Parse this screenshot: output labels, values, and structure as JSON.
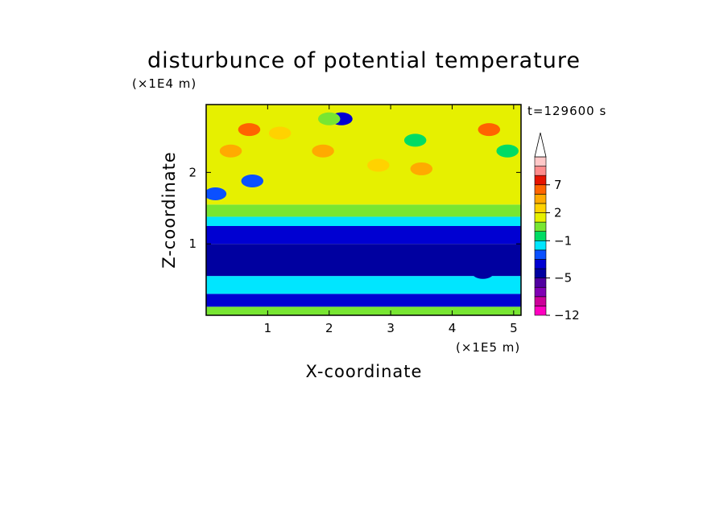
{
  "chart_data": {
    "type": "heatmap",
    "title": "disturbunce of potential temperature",
    "xlabel": "X-coordinate",
    "ylabel": "Z-coordinate",
    "x_unit": "(×1E5 m)",
    "y_unit": "(×1E4 m)",
    "time_label": "t=129600 s",
    "xlim": [
      0,
      5.12
    ],
    "ylim": [
      0,
      2.95
    ],
    "x_ticks": [
      1,
      2,
      3,
      4,
      5
    ],
    "y_ticks": [
      1,
      2
    ],
    "colorbar": {
      "levels": [
        -12,
        -11,
        -9,
        -7,
        -5,
        -4,
        -3,
        -2,
        -1,
        0,
        1,
        2,
        3,
        5,
        7,
        9,
        11
      ],
      "labeled_ticks": [
        {
          "value": -12,
          "label": "−12"
        },
        {
          "value": -5,
          "label": "−5"
        },
        {
          "value": -1,
          "label": "−1"
        },
        {
          "value": 2,
          "label": "2"
        },
        {
          "value": 7,
          "label": "7"
        }
      ],
      "colors": [
        "#ff00c0",
        "#cc0099",
        "#8000b4",
        "#5000a0",
        "#0000a0",
        "#0000d2",
        "#0a50ff",
        "#00e6ff",
        "#00dc64",
        "#78e632",
        "#e6f000",
        "#ffd200",
        "#ffaa00",
        "#ff6400",
        "#e61400",
        "#ff8c8c",
        "#ffc8c8"
      ],
      "extend": "max"
    },
    "bands": [
      {
        "z_from": 0.0,
        "z_to": 0.12,
        "value": 0
      },
      {
        "z_from": 0.12,
        "z_to": 0.3,
        "value": -4
      },
      {
        "z_from": 0.3,
        "z_to": 0.55,
        "value": -2
      },
      {
        "z_from": 0.55,
        "z_to": 1.0,
        "value": -5
      },
      {
        "z_from": 1.0,
        "z_to": 1.25,
        "value": -4
      },
      {
        "z_from": 1.25,
        "z_to": 1.38,
        "value": -2
      },
      {
        "z_from": 1.38,
        "z_to": 1.55,
        "value": 0
      },
      {
        "z_from": 1.55,
        "z_to": 2.95,
        "value": 1
      }
    ],
    "features": [
      {
        "x": 0.7,
        "z": 2.6,
        "value": 5
      },
      {
        "x": 0.4,
        "z": 2.3,
        "value": 3
      },
      {
        "x": 0.15,
        "z": 1.7,
        "value": -3
      },
      {
        "x": 0.75,
        "z": 1.88,
        "value": -3
      },
      {
        "x": 2.2,
        "z": 2.75,
        "value": -4
      },
      {
        "x": 2.0,
        "z": 2.75,
        "value": 0
      },
      {
        "x": 3.4,
        "z": 2.45,
        "value": -1
      },
      {
        "x": 3.5,
        "z": 2.05,
        "value": 3
      },
      {
        "x": 1.9,
        "z": 2.3,
        "value": 3
      },
      {
        "x": 4.6,
        "z": 2.6,
        "value": 5
      },
      {
        "x": 4.9,
        "z": 2.3,
        "value": -1
      },
      {
        "x": 4.5,
        "z": 0.6,
        "value": -5
      },
      {
        "x": 2.8,
        "z": 2.1,
        "value": 2
      },
      {
        "x": 1.2,
        "z": 2.55,
        "value": 2
      }
    ]
  }
}
